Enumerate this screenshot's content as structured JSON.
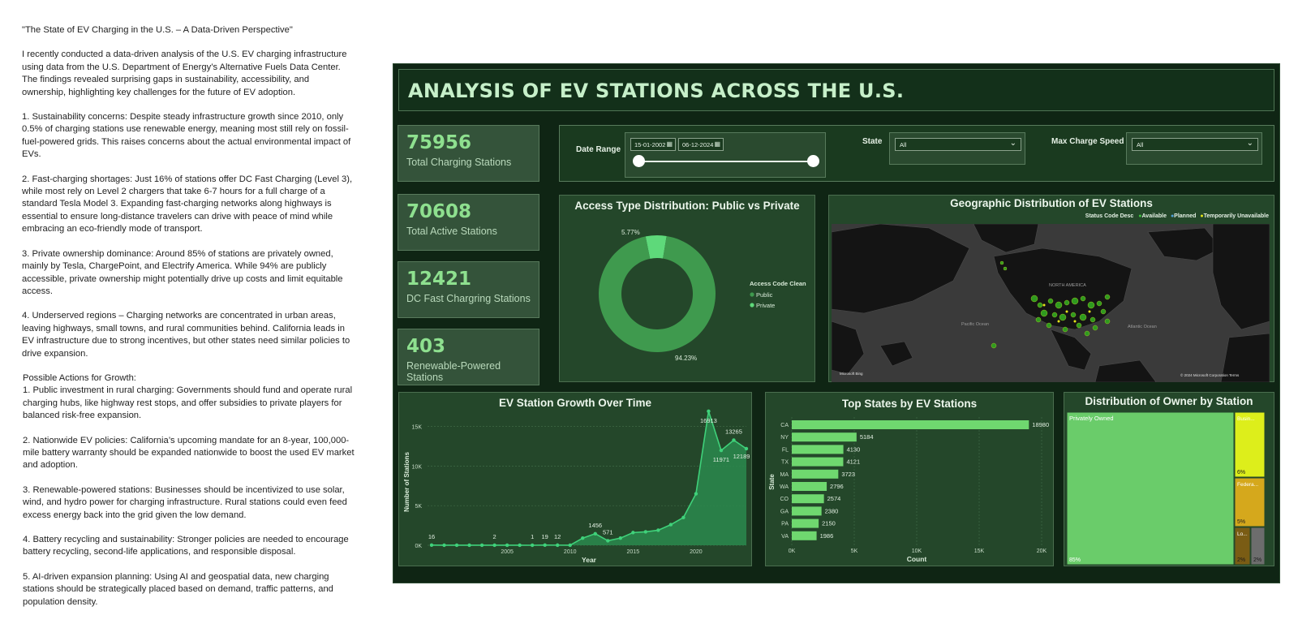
{
  "article": {
    "title": "\"The State of EV Charging in the U.S. – A Data-Driven Perspective\"",
    "paragraphs": [
      "I recently conducted a data-driven analysis of the U.S. EV charging infrastructure using data from the U.S. Department of Energy’s Alternative Fuels Data Center. The findings revealed surprising gaps in sustainability, accessibility, and ownership, highlighting key challenges for the future of EV adoption.",
      "1. Sustainability concerns: Despite steady infrastructure growth since 2010, only 0.5% of charging stations use renewable energy, meaning most still rely on fossil-fuel-powered grids. This raises concerns about the actual environmental impact of EVs.",
      "2. Fast-charging shortages: Just 16% of stations offer DC Fast Charging (Level 3), while most rely on Level 2 chargers that take 6-7 hours for a full charge of a standard Tesla Model 3. Expanding fast-charging networks along highways is essential to ensure long-distance travelers can drive with peace of mind while embracing an eco-friendly mode of transport.",
      "3. Private ownership dominance: Around 85% of stations are privately owned, mainly by Tesla, ChargePoint, and Electrify America. While 94% are publicly accessible, private ownership might potentially drive up costs and limit equitable access.",
      "4. Underserved regions – Charging networks are concentrated in urban areas, leaving highways, small towns, and rural communities behind. California leads in EV infrastructure due to strong incentives, but other states need similar policies to drive expansion."
    ],
    "actions_heading": "Possible Actions for Growth:",
    "actions": [
      "1. Public investment in rural charging: Governments should fund and operate rural charging hubs, like highway rest stops, and offer subsidies to private players for balanced risk-free expansion.",
      "2. Nationwide EV policies: California’s upcoming mandate for an 8-year, 100,000-mile battery warranty should be expanded nationwide to boost the used EV market and adoption.",
      "3.  Renewable-powered stations: Businesses should be incentivized to use solar, wind, and hydro power for charging infrastructure. Rural stations could even feed excess energy back into the grid given the low demand.",
      "4. Battery recycling and sustainability: Stronger policies are needed to encourage battery recycling, second-life applications, and responsible disposal.",
      "5. AI-driven expansion planning: Using AI and geospatial data, new charging stations should be strategically placed based on demand, traffic patterns, and population density."
    ]
  },
  "dashboard": {
    "title": "ANALYSIS OF EV STATIONS ACROSS THE U.S.",
    "kpis": [
      {
        "value": "75956",
        "label": "Total Charging Stations"
      },
      {
        "value": "70608",
        "label": "Total Active Stations"
      },
      {
        "value": "12421",
        "label": "DC Fast Chargring Stations"
      },
      {
        "value": "403",
        "label": "Renewable-Powered Stations"
      }
    ],
    "filters": {
      "date_range_label": "Date Range",
      "date_start": "15-01-2002",
      "date_end": "06-12-2024",
      "state_label": "State",
      "state_value": "All",
      "speed_label": "Max Charge Speed",
      "speed_value": "All"
    },
    "geo": {
      "title": "Geographic Distribution of EV Stations",
      "legend_title": "Status Code Desc",
      "legend": [
        {
          "label": "Available",
          "color": "#3fbf3f"
        },
        {
          "label": "Planned",
          "color": "#4fa0d8"
        },
        {
          "label": "Temporarily Unavailable",
          "color": "#e6e619"
        }
      ],
      "labels": {
        "north_america": "NORTH AMERICA",
        "pacific": "Pacific Ocean",
        "atlantic": "Atlantic Ocean"
      },
      "credit": "© 2024 Microsoft Corporation  Terms",
      "bing": "Microsoft Bing"
    },
    "colors": {
      "bg": "#0f2514",
      "panel": "#24472a",
      "accent": "#6fd86f",
      "kpi_value": "#8ee08f"
    }
  },
  "chart_data": [
    {
      "type": "pie",
      "title": "Access Type Distribution: Public vs Private",
      "legend_title": "Access Code Clean",
      "slices": [
        {
          "name": "Public",
          "value": 94.23,
          "label": "94.23%",
          "color": "#3f9a4e"
        },
        {
          "name": "Private",
          "value": 5.77,
          "label": "5.77%",
          "color": "#5ed97a"
        }
      ]
    },
    {
      "type": "area",
      "title": "EV Station Growth Over Time",
      "xlabel": "Year",
      "ylabel": "Number of Stations",
      "x": [
        1999,
        2000,
        2001,
        2002,
        2003,
        2004,
        2005,
        2006,
        2007,
        2008,
        2009,
        2010,
        2011,
        2012,
        2013,
        2014,
        2015,
        2016,
        2017,
        2018,
        2019,
        2020,
        2021,
        2022,
        2023,
        2024
      ],
      "values": [
        16,
        10,
        10,
        10,
        8,
        2,
        2,
        5,
        1,
        19,
        12,
        5,
        900,
        1456,
        571,
        900,
        1600,
        1700,
        1900,
        2600,
        3500,
        6500,
        16913,
        11971,
        13265,
        12189
      ],
      "data_labels": [
        {
          "year": 1999,
          "label": "16"
        },
        {
          "year": 2004,
          "label": "2"
        },
        {
          "year": 2007,
          "label": "1"
        },
        {
          "year": 2008,
          "label": "19"
        },
        {
          "year": 2009,
          "label": "12"
        },
        {
          "year": 2012,
          "label": "1456"
        },
        {
          "year": 2013,
          "label": "571"
        },
        {
          "year": 2021,
          "label": "16913"
        },
        {
          "year": 2022,
          "label": "11971"
        },
        {
          "year": 2023,
          "label": "13265"
        },
        {
          "year": 2024,
          "label": "12189"
        }
      ],
      "x_ticks": [
        "2005",
        "2010",
        "2015",
        "2020"
      ],
      "y_ticks": [
        "0K",
        "5K",
        "10K",
        "15K"
      ],
      "ylim": [
        0,
        17000
      ]
    },
    {
      "type": "bar",
      "title": "Top States by EV Stations",
      "xlabel": "Count",
      "ylabel": "State",
      "categories": [
        "CA",
        "NY",
        "FL",
        "TX",
        "MA",
        "WA",
        "CO",
        "GA",
        "PA",
        "VA"
      ],
      "values": [
        18980,
        5184,
        4130,
        4121,
        3723,
        2796,
        2574,
        2380,
        2150,
        1986
      ],
      "x_ticks": [
        "0K",
        "5K",
        "10K",
        "15K",
        "20K"
      ],
      "xlim": [
        0,
        20000
      ]
    },
    {
      "type": "treemap",
      "title": "Distribution of Owner by Station",
      "items": [
        {
          "name": "Privately Owned",
          "pct": "85%",
          "color": "#6acc6a"
        },
        {
          "name": "Busin...",
          "pct": "6%",
          "color": "#ddee1b"
        },
        {
          "name": "Federa...",
          "pct": "5%",
          "color": "#d5a81c"
        },
        {
          "name": "Lo...",
          "pct": "2%",
          "color": "#7a5c14"
        },
        {
          "name": "",
          "pct": "2%",
          "color": "#6d6d6d"
        }
      ]
    }
  ]
}
